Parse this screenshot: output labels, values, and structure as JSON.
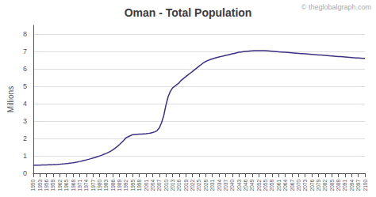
{
  "chart_data": {
    "type": "line",
    "title": "Oman - Total Population",
    "ylabel": "Millions",
    "annotations": [
      "© theglobalgraph.com"
    ],
    "color": "#3d3080",
    "grid": true,
    "xlim": [
      1950,
      2100
    ],
    "xticks": [
      1950,
      1953,
      1956,
      1959,
      1962,
      1965,
      1968,
      1971,
      1974,
      1977,
      1980,
      1983,
      1986,
      1989,
      1992,
      1995,
      1998,
      2001,
      2004,
      2007,
      2010,
      2013,
      2016,
      2019,
      2022,
      2025,
      2028,
      2031,
      2034,
      2037,
      2040,
      2043,
      2046,
      2049,
      2052,
      2055,
      2058,
      2061,
      2064,
      2067,
      2070,
      2073,
      2076,
      2079,
      2082,
      2085,
      2088,
      2091,
      2094,
      2097,
      2100
    ],
    "ylim": [
      0,
      8.5
    ],
    "yticks": [
      0,
      1,
      2,
      3,
      4,
      5,
      6,
      7,
      8
    ],
    "x": [
      1950,
      1951,
      1952,
      1953,
      1954,
      1955,
      1956,
      1957,
      1958,
      1959,
      1960,
      1961,
      1962,
      1963,
      1964,
      1965,
      1966,
      1967,
      1968,
      1969,
      1970,
      1971,
      1972,
      1973,
      1974,
      1975,
      1976,
      1977,
      1978,
      1979,
      1980,
      1981,
      1982,
      1983,
      1984,
      1985,
      1986,
      1987,
      1988,
      1989,
      1990,
      1991,
      1992,
      1993,
      1994,
      1995,
      1996,
      1997,
      1998,
      1999,
      2000,
      2001,
      2002,
      2003,
      2004,
      2005,
      2006,
      2007,
      2008,
      2009,
      2010,
      2011,
      2012,
      2013,
      2014,
      2015,
      2016,
      2017,
      2018,
      2019,
      2020,
      2021,
      2022,
      2023,
      2024,
      2025,
      2026,
      2027,
      2028,
      2029,
      2030,
      2031,
      2032,
      2033,
      2034,
      2035,
      2036,
      2037,
      2038,
      2039,
      2040,
      2041,
      2042,
      2043,
      2044,
      2045,
      2046,
      2047,
      2048,
      2049,
      2050,
      2051,
      2052,
      2053,
      2054,
      2055,
      2056,
      2057,
      2058,
      2059,
      2060,
      2061,
      2062,
      2063,
      2064,
      2065,
      2066,
      2067,
      2068,
      2069,
      2070,
      2071,
      2072,
      2073,
      2074,
      2075,
      2076,
      2077,
      2078,
      2079,
      2080,
      2081,
      2082,
      2083,
      2084,
      2085,
      2086,
      2087,
      2088,
      2089,
      2090,
      2091,
      2092,
      2093,
      2094,
      2095,
      2096,
      2097,
      2098,
      2099,
      2100
    ],
    "values": [
      0.46,
      0.463,
      0.466,
      0.469,
      0.473,
      0.477,
      0.481,
      0.486,
      0.491,
      0.497,
      0.504,
      0.511,
      0.52,
      0.53,
      0.542,
      0.555,
      0.57,
      0.587,
      0.606,
      0.627,
      0.65,
      0.676,
      0.704,
      0.734,
      0.766,
      0.8,
      0.836,
      0.874,
      0.913,
      0.953,
      0.993,
      1.04,
      1.09,
      1.14,
      1.2,
      1.27,
      1.35,
      1.44,
      1.54,
      1.65,
      1.77,
      1.9,
      2.04,
      2.1,
      2.16,
      2.22,
      2.23,
      2.24,
      2.25,
      2.25,
      2.26,
      2.27,
      2.29,
      2.31,
      2.34,
      2.38,
      2.45,
      2.6,
      2.9,
      3.3,
      3.9,
      4.4,
      4.7,
      4.9,
      5.0,
      5.1,
      5.2,
      5.35,
      5.45,
      5.55,
      5.65,
      5.75,
      5.85,
      5.95,
      6.05,
      6.15,
      6.25,
      6.35,
      6.42,
      6.48,
      6.53,
      6.57,
      6.61,
      6.65,
      6.68,
      6.71,
      6.74,
      6.77,
      6.8,
      6.83,
      6.86,
      6.89,
      6.92,
      6.95,
      6.97,
      6.99,
      7.0,
      7.01,
      7.02,
      7.03,
      7.04,
      7.05,
      7.05,
      7.05,
      7.05,
      7.04,
      7.03,
      7.02,
      7.01,
      7.0,
      6.99,
      6.98,
      6.97,
      6.96,
      6.95,
      6.94,
      6.93,
      6.92,
      6.91,
      6.9,
      6.89,
      6.88,
      6.87,
      6.86,
      6.85,
      6.84,
      6.83,
      6.82,
      6.81,
      6.8,
      6.79,
      6.78,
      6.77,
      6.76,
      6.75,
      6.74,
      6.73,
      6.72,
      6.71,
      6.7,
      6.69,
      6.68,
      6.67,
      6.66,
      6.65,
      6.64,
      6.63,
      6.62,
      6.61,
      6.6,
      6.6
    ]
  }
}
